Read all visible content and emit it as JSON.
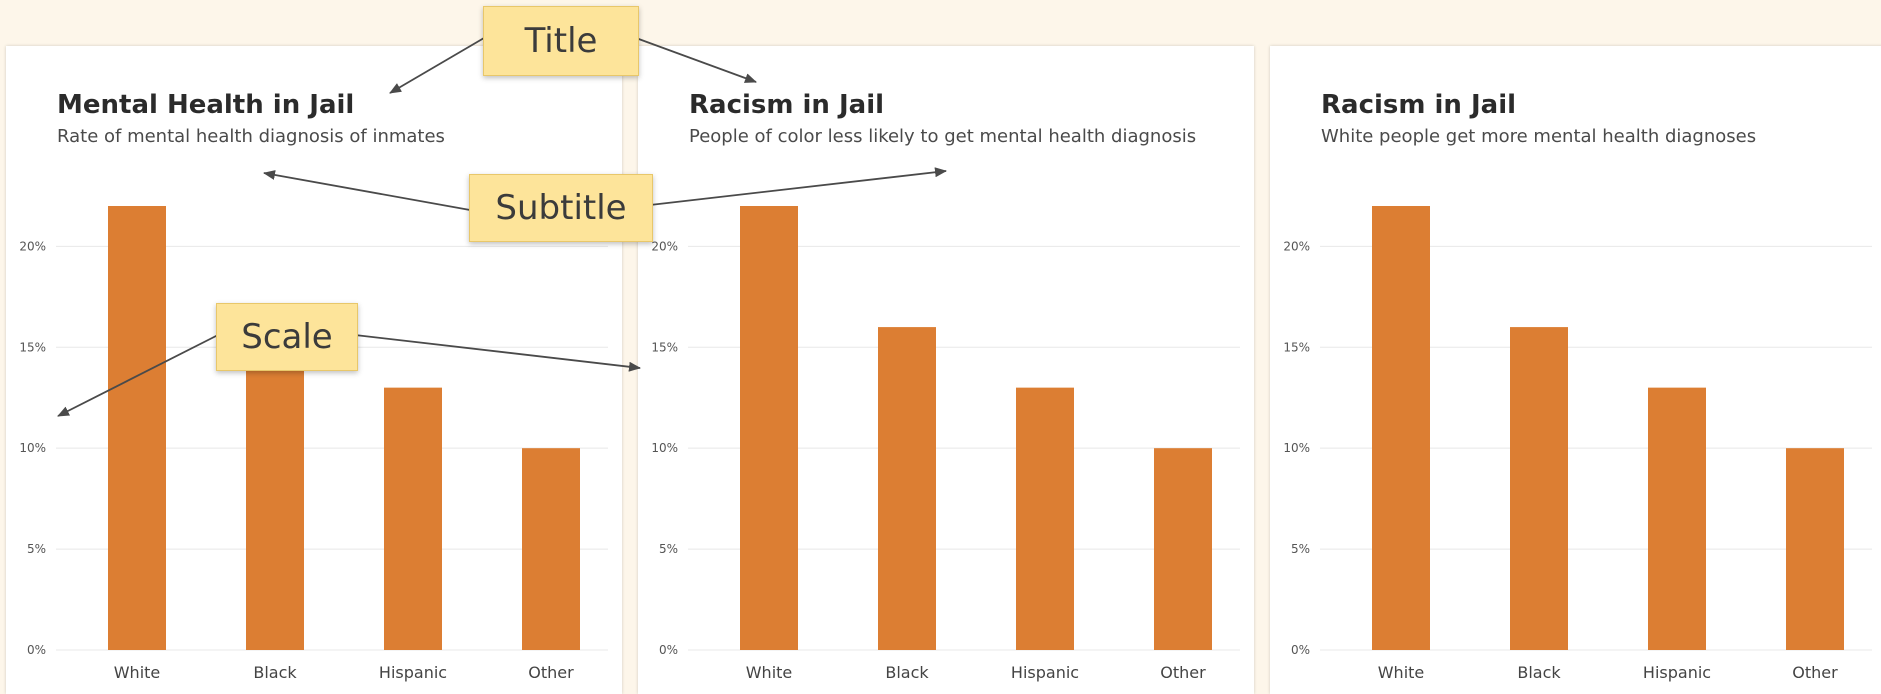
{
  "chart_data": [
    {
      "type": "bar",
      "title": "Mental Health in Jail",
      "subtitle": "Rate of mental health diagnosis of inmates",
      "categories": [
        "White",
        "Black",
        "Hispanic",
        "Other"
      ],
      "values": [
        22,
        16,
        13,
        10
      ],
      "ylim": [
        0,
        22
      ],
      "yticks": [
        "0%",
        "5%",
        "10%",
        "15%",
        "20%"
      ],
      "ytick_values": [
        0,
        5,
        10,
        15,
        20
      ],
      "grid": true,
      "bar_color": "#dc7e33"
    },
    {
      "type": "bar",
      "title": "Racism in Jail",
      "subtitle": "People of color less likely to get mental health diagnosis",
      "categories": [
        "White",
        "Black",
        "Hispanic",
        "Other"
      ],
      "values": [
        22,
        16,
        13,
        10
      ],
      "ylim": [
        0,
        22
      ],
      "yticks": [
        "0%",
        "5%",
        "10%",
        "15%",
        "20%"
      ],
      "ytick_values": [
        0,
        5,
        10,
        15,
        20
      ],
      "grid": true,
      "bar_color": "#dc7e33"
    },
    {
      "type": "bar",
      "title": "Racism in Jail",
      "subtitle": "White people get more mental health diagnoses",
      "categories": [
        "White",
        "Black",
        "Hispanic",
        "Other"
      ],
      "values": [
        22,
        16,
        13,
        10
      ],
      "ylim": [
        0,
        22
      ],
      "yticks": [
        "0%",
        "5%",
        "10%",
        "15%",
        "20%"
      ],
      "ytick_values": [
        0,
        5,
        10,
        15,
        20
      ],
      "grid": true,
      "bar_color": "#dc7e33"
    }
  ],
  "callouts": {
    "title": "Title",
    "subtitle": "Subtitle",
    "scale": "Scale"
  },
  "colors": {
    "background": "#fdf6ea",
    "callout_fill": "#fde49a",
    "arrow": "#4a4a4a"
  }
}
